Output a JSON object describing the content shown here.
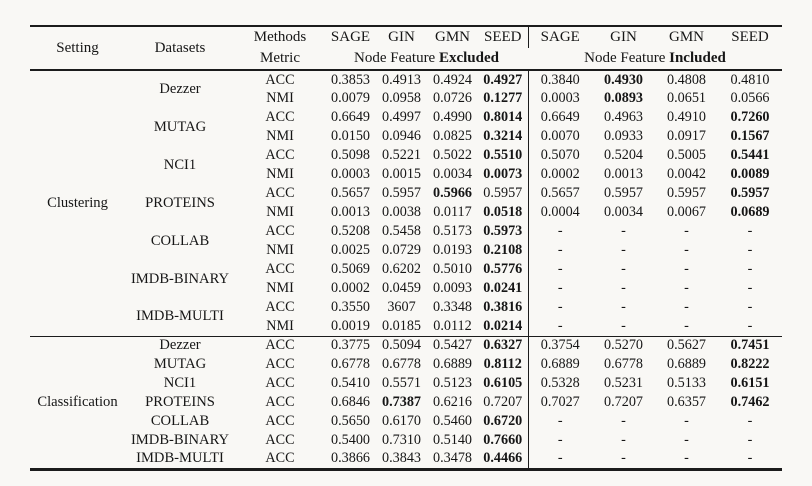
{
  "theme": {
    "background": "#f9f8f5",
    "text_color": "#161616",
    "rule_color": "#1c1c1c"
  },
  "header": {
    "setting": "Setting",
    "datasets": "Datasets",
    "methods": "Methods",
    "metric": "Metric",
    "method_names": [
      "SAGE",
      "GIN",
      "GMN",
      "SEED"
    ],
    "feature_prefix": "Node Feature ",
    "excluded_word": "Excluded",
    "included_word": "Included"
  },
  "sections": [
    {
      "setting": "Clustering",
      "datasets": [
        {
          "dataset": "Dezzer",
          "metrics": [
            {
              "metric": "ACC",
              "excluded": [
                "0.3853",
                "0.4913",
                "0.4924",
                "0.4927"
              ],
              "excluded_bold": [
                3
              ],
              "included": [
                "0.3840",
                "0.4930",
                "0.4808",
                "0.4810"
              ],
              "included_bold": [
                1
              ]
            },
            {
              "metric": "NMI",
              "excluded": [
                "0.0079",
                "0.0958",
                "0.0726",
                "0.1277"
              ],
              "excluded_bold": [
                3
              ],
              "included": [
                "0.0003",
                "0.0893",
                "0.0651",
                "0.0566"
              ],
              "included_bold": [
                1
              ]
            }
          ]
        },
        {
          "dataset": "MUTAG",
          "metrics": [
            {
              "metric": "ACC",
              "excluded": [
                "0.6649",
                "0.4997",
                "0.4990",
                "0.8014"
              ],
              "excluded_bold": [
                3
              ],
              "included": [
                "0.6649",
                "0.4963",
                "0.4910",
                "0.7260"
              ],
              "included_bold": [
                3
              ]
            },
            {
              "metric": "NMI",
              "excluded": [
                "0.0150",
                "0.0946",
                "0.0825",
                "0.3214"
              ],
              "excluded_bold": [
                3
              ],
              "included": [
                "0.0070",
                "0.0933",
                "0.0917",
                "0.1567"
              ],
              "included_bold": [
                3
              ]
            }
          ]
        },
        {
          "dataset": "NCI1",
          "metrics": [
            {
              "metric": "ACC",
              "excluded": [
                "0.5098",
                "0.5221",
                "0.5022",
                "0.5510"
              ],
              "excluded_bold": [
                3
              ],
              "included": [
                "0.5070",
                "0.5204",
                "0.5005",
                "0.5441"
              ],
              "included_bold": [
                3
              ]
            },
            {
              "metric": "NMI",
              "excluded": [
                "0.0003",
                "0.0015",
                "0.0034",
                "0.0073"
              ],
              "excluded_bold": [
                3
              ],
              "included": [
                "0.0002",
                "0.0013",
                "0.0042",
                "0.0089"
              ],
              "included_bold": [
                3
              ]
            }
          ]
        },
        {
          "dataset": "PROTEINS",
          "metrics": [
            {
              "metric": "ACC",
              "excluded": [
                "0.5657",
                "0.5957",
                "0.5966",
                "0.5957"
              ],
              "excluded_bold": [
                2
              ],
              "included": [
                "0.5657",
                "0.5957",
                "0.5957",
                "0.5957"
              ],
              "included_bold": [
                3
              ]
            },
            {
              "metric": "NMI",
              "excluded": [
                "0.0013",
                "0.0038",
                "0.0117",
                "0.0518"
              ],
              "excluded_bold": [
                3
              ],
              "included": [
                "0.0004",
                "0.0034",
                "0.0067",
                "0.0689"
              ],
              "included_bold": [
                3
              ]
            }
          ]
        },
        {
          "dataset": "COLLAB",
          "metrics": [
            {
              "metric": "ACC",
              "excluded": [
                "0.5208",
                "0.5458",
                "0.5173",
                "0.5973"
              ],
              "excluded_bold": [
                3
              ],
              "included": [
                "-",
                "-",
                "-",
                "-"
              ],
              "included_bold": []
            },
            {
              "metric": "NMI",
              "excluded": [
                "0.0025",
                "0.0729",
                "0.0193",
                "0.2108"
              ],
              "excluded_bold": [
                3
              ],
              "included": [
                "-",
                "-",
                "-",
                "-"
              ],
              "included_bold": []
            }
          ]
        },
        {
          "dataset": "IMDB-BINARY",
          "metrics": [
            {
              "metric": "ACC",
              "excluded": [
                "0.5069",
                "0.6202",
                "0.5010",
                "0.5776"
              ],
              "excluded_bold": [
                3
              ],
              "included": [
                "-",
                "-",
                "-",
                "-"
              ],
              "included_bold": []
            },
            {
              "metric": "NMI",
              "excluded": [
                "0.0002",
                "0.0459",
                "0.0093",
                "0.0241"
              ],
              "excluded_bold": [
                3
              ],
              "included": [
                "-",
                "-",
                "-",
                "-"
              ],
              "included_bold": []
            }
          ]
        },
        {
          "dataset": "IMDB-MULTI",
          "metrics": [
            {
              "metric": "ACC",
              "excluded": [
                "0.3550",
                "3607",
                "0.3348",
                "0.3816"
              ],
              "excluded_bold": [
                3
              ],
              "included": [
                "-",
                "-",
                "-",
                "-"
              ],
              "included_bold": []
            },
            {
              "metric": "NMI",
              "excluded": [
                "0.0019",
                "0.0185",
                "0.0112",
                "0.0214"
              ],
              "excluded_bold": [
                3
              ],
              "included": [
                "-",
                "-",
                "-",
                "-"
              ],
              "included_bold": []
            }
          ]
        }
      ]
    },
    {
      "setting": "Classification",
      "datasets": [
        {
          "dataset": "Dezzer",
          "metrics": [
            {
              "metric": "ACC",
              "excluded": [
                "0.3775",
                "0.5094",
                "0.5427",
                "0.6327"
              ],
              "excluded_bold": [
                3
              ],
              "included": [
                "0.3754",
                "0.5270",
                "0.5627",
                "0.7451"
              ],
              "included_bold": [
                3
              ]
            }
          ]
        },
        {
          "dataset": "MUTAG",
          "metrics": [
            {
              "metric": "ACC",
              "excluded": [
                "0.6778",
                "0.6778",
                "0.6889",
                "0.8112"
              ],
              "excluded_bold": [
                3
              ],
              "included": [
                "0.6889",
                "0.6778",
                "0.6889",
                "0.8222"
              ],
              "included_bold": [
                3
              ]
            }
          ]
        },
        {
          "dataset": "NCI1",
          "metrics": [
            {
              "metric": "ACC",
              "excluded": [
                "0.5410",
                "0.5571",
                "0.5123",
                "0.6105"
              ],
              "excluded_bold": [
                3
              ],
              "included": [
                "0.5328",
                "0.5231",
                "0.5133",
                "0.6151"
              ],
              "included_bold": [
                3
              ]
            }
          ]
        },
        {
          "dataset": "PROTEINS",
          "metrics": [
            {
              "metric": "ACC",
              "excluded": [
                "0.6846",
                "0.7387",
                "0.6216",
                "0.7207"
              ],
              "excluded_bold": [
                1
              ],
              "included": [
                "0.7027",
                "0.7207",
                "0.6357",
                "0.7462"
              ],
              "included_bold": [
                3
              ]
            }
          ]
        },
        {
          "dataset": "COLLAB",
          "metrics": [
            {
              "metric": "ACC",
              "excluded": [
                "0.5650",
                "0.6170",
                "0.5460",
                "0.6720"
              ],
              "excluded_bold": [
                3
              ],
              "included": [
                "-",
                "-",
                "-",
                "-"
              ],
              "included_bold": []
            }
          ]
        },
        {
          "dataset": "IMDB-BINARY",
          "metrics": [
            {
              "metric": "ACC",
              "excluded": [
                "0.5400",
                "0.7310",
                "0.5140",
                "0.7660"
              ],
              "excluded_bold": [
                3
              ],
              "included": [
                "-",
                "-",
                "-",
                "-"
              ],
              "included_bold": []
            }
          ]
        },
        {
          "dataset": "IMDB-MULTI",
          "metrics": [
            {
              "metric": "ACC",
              "excluded": [
                "0.3866",
                "0.3843",
                "0.3478",
                "0.4466"
              ],
              "excluded_bold": [
                3
              ],
              "included": [
                "-",
                "-",
                "-",
                "-"
              ],
              "included_bold": []
            }
          ]
        }
      ]
    }
  ]
}
